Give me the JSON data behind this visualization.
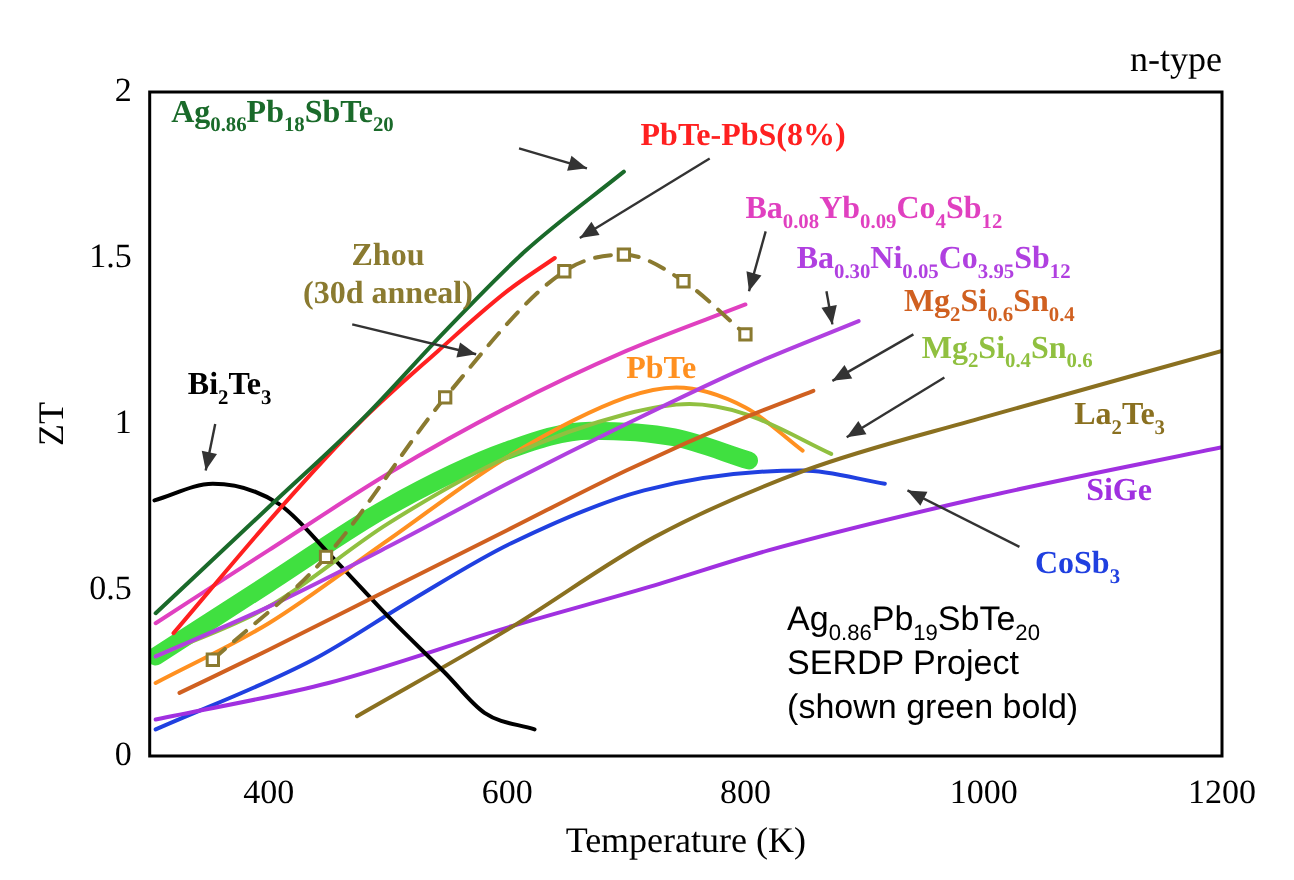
{
  "chart_data": {
    "type": "line",
    "xlabel": "Temperature (K)",
    "ylabel": "ZT",
    "xlim": [
      300,
      1200
    ],
    "xticks": [
      400,
      600,
      800,
      1000,
      1200
    ],
    "ylim": [
      0,
      2
    ],
    "yticks": [
      0,
      0.5,
      1,
      1.5,
      2
    ],
    "grid": false,
    "legend": false,
    "marker": "none",
    "line_style": "solid",
    "annotations": [
      "n-type",
      "Ag$_{0.86}$Pb$_{19}$SbTe$_{20}$\nSERDP Project\n(shown green bold)"
    ],
    "series": [
      {
        "name": "Ag$_{0.86}$Pb$_{18}$SbTe$_{20}$",
        "color": "#1a6a2a",
        "x": [
          305,
          400,
          480,
          548,
          615,
          698
        ],
        "values": [
          0.43,
          0.75,
          1.02,
          1.28,
          1.52,
          1.76
        ]
      },
      {
        "name": "PbTe-PbS(8%)",
        "color": "#ff2020",
        "x": [
          320,
          408,
          475,
          542,
          600,
          640
        ],
        "values": [
          0.37,
          0.74,
          1.0,
          1.22,
          1.4,
          1.5
        ]
      },
      {
        "name": "Zhou\n(30d anneal)",
        "color": "#8a7a30",
        "line_style": "dashed",
        "marker": "square",
        "x": [
          353,
          448,
          548,
          648,
          698,
          748,
          800
        ],
        "values": [
          0.29,
          0.6,
          1.08,
          1.46,
          1.51,
          1.43,
          1.27
        ]
      },
      {
        "name": "Ba$_{0.08}$Yb$_{0.09}$Co$_{4}$Sb$_{12}$",
        "color": "#e040c0",
        "x": [
          305,
          400,
          500,
          600,
          700,
          800
        ],
        "values": [
          0.4,
          0.62,
          0.85,
          1.05,
          1.22,
          1.36
        ]
      },
      {
        "name": "Ba$_{0.30}$Ni$_{0.05}$Co$_{3.95}$Sb$_{12}$",
        "color": "#b040e0",
        "x": [
          305,
          400,
          500,
          600,
          700,
          800,
          895
        ],
        "values": [
          0.3,
          0.45,
          0.63,
          0.82,
          1.0,
          1.17,
          1.31
        ]
      },
      {
        "name": "Mg$_{2}$Si$_{0.6}$Sn$_{0.4}$",
        "color": "#d06020",
        "x": [
          325,
          400,
          500,
          600,
          700,
          800,
          857
        ],
        "values": [
          0.19,
          0.32,
          0.5,
          0.68,
          0.86,
          1.02,
          1.1
        ]
      },
      {
        "name": "Mg$_{2}$Si$_{0.4}$Sn$_{0.6}$",
        "color": "#90c040",
        "x": [
          305,
          400,
          500,
          600,
          700,
          753,
          800,
          872
        ],
        "values": [
          0.3,
          0.45,
          0.7,
          0.9,
          1.03,
          1.06,
          1.03,
          0.91
        ]
      },
      {
        "name": "PbTe",
        "color": "#ff9020",
        "x": [
          305,
          400,
          500,
          600,
          700,
          742,
          800,
          848
        ],
        "values": [
          0.22,
          0.4,
          0.65,
          0.9,
          1.08,
          1.11,
          1.05,
          0.92
        ]
      },
      {
        "name": "Bi$_{2}$Te$_{3}$",
        "color": "#000000",
        "x": [
          304,
          353,
          408,
          453,
          503,
          548,
          581,
          623
        ],
        "values": [
          0.77,
          0.82,
          0.76,
          0.6,
          0.41,
          0.25,
          0.13,
          0.08
        ]
      },
      {
        "name": "La$_{2}$Te$_{3}$",
        "color": "#8a7020",
        "x": [
          474,
          600,
          724,
          850,
          1000,
          1200
        ],
        "values": [
          0.12,
          0.38,
          0.66,
          0.86,
          1.02,
          1.22
        ]
      },
      {
        "name": "SiGe",
        "color": "#a030e0",
        "x": [
          305,
          450,
          603,
          720,
          820,
          1000,
          1200
        ],
        "values": [
          0.11,
          0.22,
          0.39,
          0.51,
          0.62,
          0.78,
          0.93
        ]
      },
      {
        "name": "CoSb$_{3}$",
        "color": "#2040e0",
        "x": [
          305,
          437,
          520,
          603,
          715,
          848,
          917
        ],
        "values": [
          0.08,
          0.29,
          0.47,
          0.64,
          0.8,
          0.86,
          0.82
        ]
      },
      {
        "color": "#40e040",
        "x": [
          305,
          400,
          500,
          600,
          670,
          740,
          803
        ],
        "values": [
          0.3,
          0.52,
          0.75,
          0.92,
          0.98,
          0.96,
          0.89
        ]
      }
    ]
  }
}
